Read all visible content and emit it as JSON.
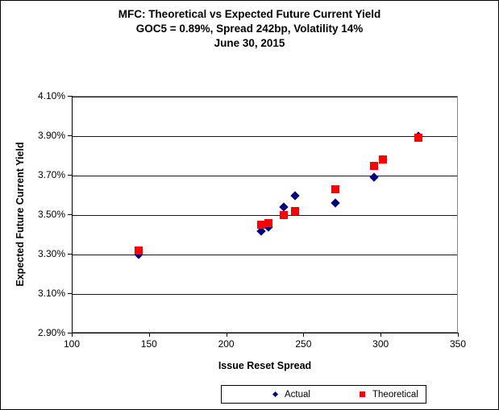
{
  "figure": {
    "title_line1": "MFC: Theoretical vs Expected Future Current Yield",
    "title_line2": "GOC5 = 0.89%, Spread 242bp, Volatility 14%",
    "title_line3": "June 30, 2015"
  },
  "chart_data": {
    "type": "scatter",
    "title": "MFC: Theoretical vs Expected Future Current Yield",
    "subtitle": "GOC5 = 0.89%, Spread 242bp, Volatility 14%",
    "date_line": "June 30, 2015",
    "xlabel": "Issue Reset Spread",
    "ylabel": "Expected Future Current Yield",
    "xlim": [
      100,
      350
    ],
    "ylim_percent": [
      2.9,
      4.1
    ],
    "xticks": [
      100,
      150,
      200,
      250,
      300,
      350
    ],
    "yticks": [
      {
        "value": 4.1,
        "label": "4.10%"
      },
      {
        "value": 3.9,
        "label": "3.90%"
      },
      {
        "value": 3.7,
        "label": "3.70%"
      },
      {
        "value": 3.5,
        "label": "3.50%"
      },
      {
        "value": 3.3,
        "label": "3.30%"
      },
      {
        "value": 3.1,
        "label": "3.10%"
      },
      {
        "value": 2.9,
        "label": "2.90%"
      }
    ],
    "grid": "horizontal-black-lines",
    "legend_position": "bottom-center-boxed",
    "series": [
      {
        "name": "Actual",
        "marker": "diamond",
        "color": "#000080",
        "points": [
          [
            143,
            3.3
          ],
          [
            222,
            3.42
          ],
          [
            227,
            3.44
          ],
          [
            237,
            3.54
          ],
          [
            244,
            3.6
          ],
          [
            270,
            3.56
          ],
          [
            295,
            3.69
          ],
          [
            301,
            3.78
          ],
          [
            324,
            3.9
          ]
        ]
      },
      {
        "name": "Theoretical",
        "marker": "square",
        "color": "#FF0000",
        "points": [
          [
            143,
            3.32
          ],
          [
            222,
            3.45
          ],
          [
            227,
            3.46
          ],
          [
            237,
            3.5
          ],
          [
            244,
            3.52
          ],
          [
            270,
            3.63
          ],
          [
            295,
            3.75
          ],
          [
            301,
            3.78
          ],
          [
            324,
            3.89
          ]
        ]
      }
    ]
  }
}
